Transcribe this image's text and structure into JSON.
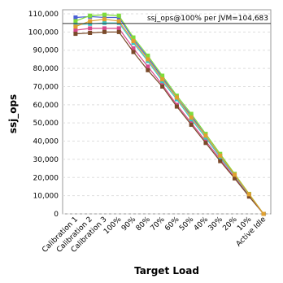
{
  "chart_data": {
    "type": "line",
    "x_label": "Target Load",
    "y_label": "ssj_ops",
    "categories": [
      "Calibration 1",
      "Calibration 2",
      "Calibration 3",
      "100%",
      "90%",
      "80%",
      "70%",
      "60%",
      "50%",
      "40%",
      "30%",
      "20%",
      "10%",
      "Active Idle"
    ],
    "ylim": [
      0,
      110000
    ],
    "yticks": [
      {
        "value": 0,
        "label": "0"
      },
      {
        "value": 10000,
        "label": "10,000"
      },
      {
        "value": 20000,
        "label": "20,000"
      },
      {
        "value": 30000,
        "label": "30,000"
      },
      {
        "value": 40000,
        "label": "40,000"
      },
      {
        "value": 50000,
        "label": "50,000"
      },
      {
        "value": 60000,
        "label": "60,000"
      },
      {
        "value": 70000,
        "label": "70,000"
      },
      {
        "value": 80000,
        "label": "80,000"
      },
      {
        "value": 90000,
        "label": "90,000"
      },
      {
        "value": 100000,
        "label": "100,000"
      },
      {
        "value": 110000,
        "label": "110,000"
      }
    ],
    "grid": true,
    "reference_line": {
      "value": 104683,
      "label": "ssj_ops@100% per JVM=104,683"
    },
    "series": [
      {
        "color": "#4a5fd6",
        "values": [
          108000,
          108500,
          108000,
          108000,
          96000,
          86000,
          75000,
          64000,
          54000,
          43000,
          32000,
          21000,
          10500,
          0
        ]
      },
      {
        "color": "#7fdc3a",
        "values": [
          106000,
          109000,
          109500,
          109000,
          97000,
          87000,
          76000,
          65000,
          55000,
          44000,
          33000,
          22000,
          11000,
          0
        ]
      },
      {
        "color": "#d64a8c",
        "values": [
          101000,
          102000,
          102000,
          102000,
          91000,
          81000,
          71000,
          60000,
          50000,
          40000,
          30000,
          20000,
          10000,
          0
        ]
      },
      {
        "color": "#3ac6c6",
        "values": [
          104000,
          104500,
          105000,
          105000,
          94000,
          84000,
          73000,
          63000,
          52000,
          42000,
          31000,
          21000,
          10500,
          0
        ]
      },
      {
        "color": "#7a4a2a",
        "values": [
          99000,
          99500,
          100000,
          100000,
          89000,
          79000,
          70000,
          59000,
          49000,
          39000,
          29000,
          19500,
          9500,
          0
        ]
      },
      {
        "color": "#e0a030",
        "values": [
          103000,
          106000,
          107000,
          106000,
          95000,
          85000,
          74000,
          64000,
          53000,
          43000,
          32000,
          21500,
          10800,
          0
        ]
      }
    ]
  }
}
